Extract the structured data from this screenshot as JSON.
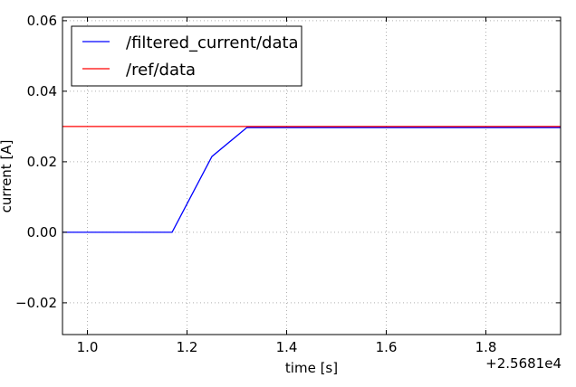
{
  "chart_data": {
    "type": "line",
    "xlabel": "time [s]",
    "ylabel": "current [A]",
    "x_offset_label": "+2.5681e4",
    "xlim": [
      0.95,
      1.95
    ],
    "ylim": [
      -0.029,
      0.061
    ],
    "x_ticks": [
      1.0,
      1.2,
      1.4,
      1.6,
      1.8
    ],
    "x_tick_labels": [
      "1.0",
      "1.2",
      "1.4",
      "1.6",
      "1.8"
    ],
    "y_ticks": [
      -0.02,
      0.0,
      0.02,
      0.04,
      0.06
    ],
    "y_tick_labels": [
      "−0.02",
      "0.00",
      "0.02",
      "0.04",
      "0.06"
    ],
    "grid": true,
    "legend_position": "top-left",
    "series": [
      {
        "name": "/filtered_current/data",
        "color": "#0000ff",
        "x": [
          0.95,
          1.17,
          1.25,
          1.32,
          1.95
        ],
        "y": [
          0.0,
          0.0,
          0.0215,
          0.0297,
          0.0297
        ]
      },
      {
        "name": "/ref/data",
        "color": "#ff0000",
        "x": [
          0.95,
          1.95
        ],
        "y": [
          0.03,
          0.03
        ]
      }
    ]
  }
}
